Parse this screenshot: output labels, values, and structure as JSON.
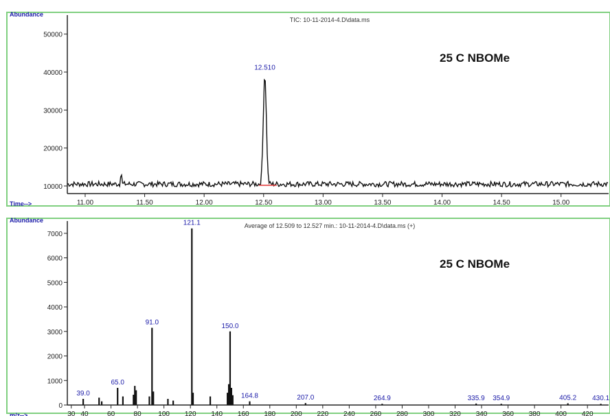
{
  "colors": {
    "panel_border": "#7fcf7f",
    "trace": "#111111",
    "peak_label": "#1a1aa8",
    "baseline_marker": "#e03030",
    "axis_title": "#1a1aa8"
  },
  "chart_data": [
    {
      "type": "line",
      "title": "TIC: 10-11-2014-4.D\\data.ms",
      "ylabel": "Abundance",
      "xlabel": "Time-->",
      "watermark": "25 C NBOMe",
      "ylim": [
        8000,
        55000
      ],
      "xlim": [
        10.85,
        15.4
      ],
      "yticks": [
        10000,
        20000,
        30000,
        40000,
        50000
      ],
      "ytick_labels": [
        "10000",
        "20000",
        "30000",
        "40000",
        "50000"
      ],
      "xticks": [
        11.0,
        11.5,
        12.0,
        12.5,
        13.0,
        13.5,
        14.0,
        14.5,
        15.0
      ],
      "xtick_labels": [
        "11.00",
        "11.50",
        "12.00",
        "12.50",
        "13.00",
        "13.50",
        "14.00",
        "14.50",
        "15.00"
      ],
      "grid": false,
      "peaks": [
        {
          "x": 12.51,
          "y": 39500,
          "label": "12.510"
        }
      ],
      "baseline_level": 10500
    },
    {
      "type": "bar",
      "title": "Average of 12.509 to 12.527 min.: 10-11-2014-4.D\\data.ms (+)",
      "ylabel": "Abundance",
      "xlabel": "m/z-->",
      "watermark": "25 C NBOMe",
      "ylim": [
        0,
        7500
      ],
      "xlim": [
        27,
        436
      ],
      "yticks": [
        0,
        1000,
        2000,
        3000,
        4000,
        5000,
        6000,
        7000
      ],
      "ytick_labels": [
        "0",
        "1000",
        "2000",
        "3000",
        "4000",
        "5000",
        "6000",
        "7000"
      ],
      "xticks": [
        30,
        40,
        60,
        80,
        100,
        120,
        140,
        160,
        180,
        200,
        220,
        240,
        260,
        280,
        300,
        320,
        340,
        360,
        380,
        400,
        420
      ],
      "xtick_labels": [
        "30",
        "40",
        "60",
        "80",
        "100",
        "120",
        "140",
        "160",
        "180",
        "200",
        "220",
        "240",
        "260",
        "280",
        "300",
        "320",
        "340",
        "360",
        "380",
        "400",
        "420"
      ],
      "grid": false,
      "x": [
        39.0,
        51.0,
        53.0,
        65.0,
        69.0,
        77.0,
        78.0,
        79.0,
        89.0,
        91.0,
        92.0,
        103.0,
        107.0,
        121.1,
        122.0,
        135.0,
        148.0,
        149.0,
        150.0,
        151.0,
        152.0,
        164.8,
        207.0,
        264.9,
        335.9,
        354.9,
        405.2,
        430.1
      ],
      "values": [
        250,
        300,
        150,
        700,
        350,
        420,
        780,
        600,
        350,
        3150,
        550,
        250,
        180,
        7200,
        500,
        350,
        500,
        850,
        3000,
        700,
        400,
        150,
        80,
        50,
        60,
        50,
        70,
        50
      ],
      "labels": [
        {
          "x": 39.0,
          "y": 250,
          "text": "39.0"
        },
        {
          "x": 65.0,
          "y": 700,
          "text": "65.0"
        },
        {
          "x": 91.0,
          "y": 3150,
          "text": "91.0"
        },
        {
          "x": 121.1,
          "y": 7200,
          "text": "121.1"
        },
        {
          "x": 150.0,
          "y": 3000,
          "text": "150.0"
        },
        {
          "x": 164.8,
          "y": 150,
          "text": "164.8"
        },
        {
          "x": 207.0,
          "y": 80,
          "text": "207.0"
        },
        {
          "x": 264.9,
          "y": 50,
          "text": "264.9"
        },
        {
          "x": 335.9,
          "y": 60,
          "text": "335.9"
        },
        {
          "x": 354.9,
          "y": 50,
          "text": "354.9"
        },
        {
          "x": 405.2,
          "y": 70,
          "text": "405.2"
        },
        {
          "x": 430.1,
          "y": 50,
          "text": "430.1"
        }
      ]
    }
  ]
}
